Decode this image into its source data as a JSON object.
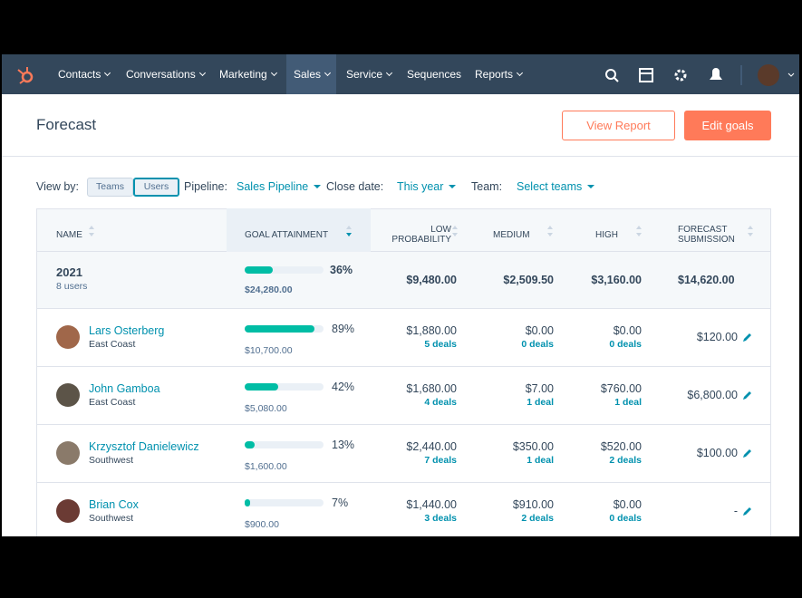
{
  "nav": {
    "items": [
      {
        "label": "Contacts",
        "dropdown": true
      },
      {
        "label": "Conversations",
        "dropdown": true
      },
      {
        "label": "Marketing",
        "dropdown": true
      },
      {
        "label": "Sales",
        "dropdown": true
      },
      {
        "label": "Service",
        "dropdown": true
      },
      {
        "label": "Sequences",
        "dropdown": false
      },
      {
        "label": "Reports",
        "dropdown": true
      }
    ],
    "active": "Sales"
  },
  "header": {
    "title": "Forecast",
    "buttons": [
      "View Report",
      "Edit goals"
    ]
  },
  "filters": {
    "view_by_label": "View by:",
    "view_options": [
      "Teams",
      "Users"
    ],
    "selected_view": "Users",
    "pipeline_label": "Pipeline:",
    "pipeline": "Sales Pipeline",
    "close_date_label": "Close date:",
    "close_date": "This year",
    "team_label": "Team:",
    "team": "Select teams"
  },
  "table": {
    "columns": [
      "NAME",
      "GOAL ATTAINMENT",
      "LOW PROBABILITY",
      "MEDIUM",
      "HIGH",
      "FORECAST SUBMISSION"
    ],
    "summary": {
      "name": "2021",
      "sub": "8 users",
      "goal": {
        "value": 36,
        "label": "36%"
      },
      "goal_amount": "$24,280.00",
      "low": "$9,480.00",
      "medium": "$2,509.50",
      "high": "$3,160.00",
      "forecast": "$14,620.00"
    },
    "rows": [
      {
        "name": "Lars Osterberg",
        "region": "East Coast",
        "goal": {
          "value": 89,
          "label": "89%"
        },
        "goal_amount": "$10,700.00",
        "low": "$1,880.00",
        "low_deals": "5 deals",
        "medium": "$0.00",
        "medium_deals": "0 deals",
        "high": "$0.00",
        "high_deals": "0 deals",
        "forecast": "$120.00"
      },
      {
        "name": "John Gamboa",
        "region": "East Coast",
        "goal": {
          "value": 42,
          "label": "42%"
        },
        "goal_amount": "$5,080.00",
        "low": "$1,680.00",
        "low_deals": "4 deals",
        "medium": "$7.00",
        "medium_deals": "1 deal",
        "high": "$760.00",
        "high_deals": "1 deal",
        "forecast": "$6,800.00"
      },
      {
        "name": "Krzysztof Danielewicz",
        "region": "Southwest",
        "goal": {
          "value": 13,
          "label": "13%"
        },
        "goal_amount": "$1,600.00",
        "low": "$2,440.00",
        "low_deals": "7 deals",
        "medium": "$350.00",
        "medium_deals": "1 deal",
        "high": "$520.00",
        "high_deals": "2 deals",
        "forecast": "$100.00"
      },
      {
        "name": "Brian Cox",
        "region": "Southwest",
        "goal": {
          "value": 7,
          "label": "7%"
        },
        "goal_amount": "$900.00",
        "low": "$1,440.00",
        "low_deals": "3 deals",
        "medium": "$910.00",
        "medium_deals": "2 deals",
        "high": "$0.00",
        "high_deals": "0 deals",
        "forecast": "-"
      }
    ]
  }
}
